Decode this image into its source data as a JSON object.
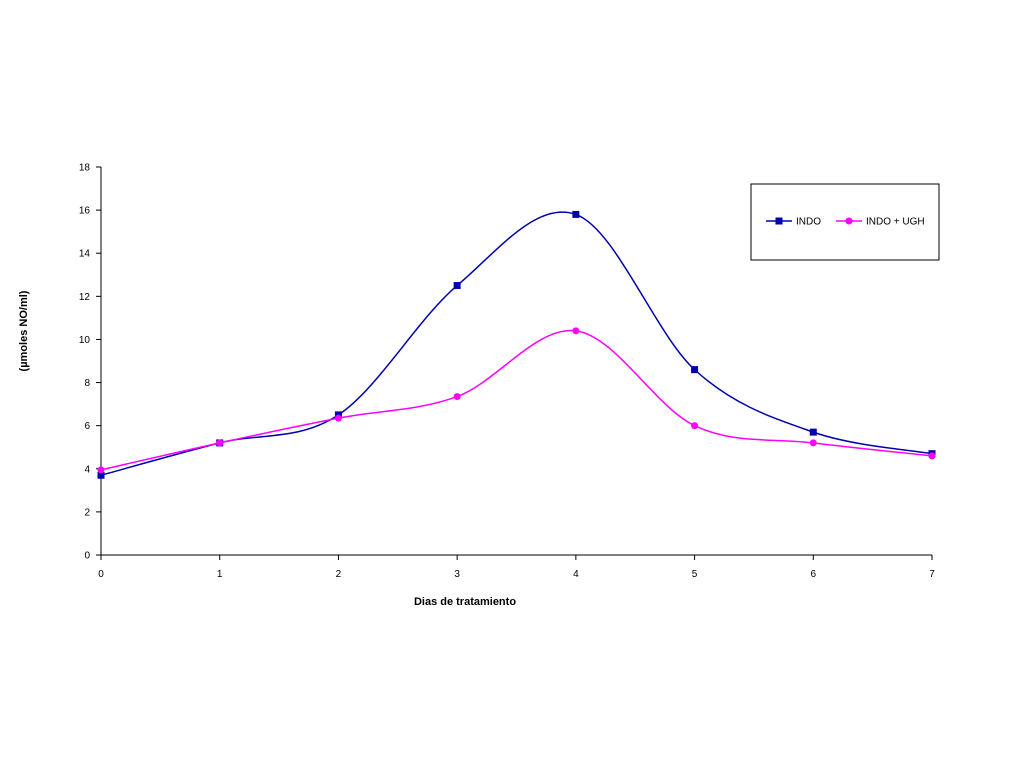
{
  "chart_data": {
    "type": "line",
    "xlabel": "Dias de tratamiento",
    "ylabel": "(µmoles NO/ml)",
    "x": [
      0,
      1,
      2,
      3,
      4,
      5,
      6,
      7
    ],
    "xlim": [
      0,
      7
    ],
    "ylim": [
      0,
      18
    ],
    "yticks": [
      0,
      2,
      4,
      6,
      8,
      10,
      12,
      14,
      16,
      18
    ],
    "xticks": [
      0,
      1,
      2,
      3,
      4,
      5,
      6,
      7
    ],
    "grid": false,
    "smooth": true,
    "legend_position": "top-right",
    "series": [
      {
        "name": "INDO",
        "color": "#0000b0",
        "marker": "square",
        "values": [
          3.7,
          5.2,
          6.5,
          12.5,
          15.8,
          8.6,
          5.7,
          4.7
        ]
      },
      {
        "name": "INDO + UGH",
        "color": "#ff00ff",
        "marker": "circle",
        "values": [
          3.95,
          5.2,
          6.35,
          7.35,
          10.4,
          6.0,
          5.2,
          4.6
        ]
      }
    ]
  }
}
